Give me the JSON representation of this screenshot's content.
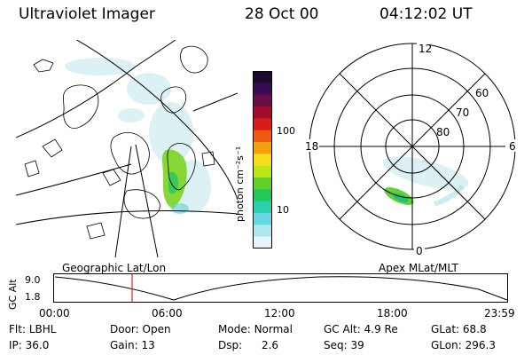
{
  "header": {
    "title": "Ultraviolet Imager",
    "date": "28 Oct 00",
    "time": "04:12:02 UT"
  },
  "colorbar": {
    "unit_label": "photon cm⁻²s⁻¹",
    "ticks": [
      "100",
      "10"
    ],
    "colors": [
      "#1c0a2c",
      "#3a0a52",
      "#6a0c46",
      "#a30d2b",
      "#d81b1b",
      "#f05a10",
      "#f6a010",
      "#f6dc1a",
      "#b8e81a",
      "#62d02a",
      "#22c85a",
      "#2ad0b0",
      "#66dae0",
      "#b0e8ef",
      "#e8f6f8"
    ]
  },
  "left_map": {
    "caption": "Geographic Lat/Lon",
    "aurora_color": "#7ed62a"
  },
  "polar_plot": {
    "caption": "Apex MLat/MLT",
    "hour_labels": [
      "12",
      "18",
      "6",
      "0"
    ],
    "lat_labels": [
      "60",
      "70",
      "80"
    ],
    "aurora_color": "#5fd23a"
  },
  "altitude_plot": {
    "ylabel": "GC Alt",
    "yticks": [
      "9.0",
      "1.8"
    ],
    "xticks": [
      "00:00",
      "06:00",
      "12:00",
      "18:00",
      "23:59"
    ],
    "marker_color": "#dd2222"
  },
  "info": {
    "flt_label": "Flt:",
    "flt_value": "LBHL",
    "ip_label": "IP:",
    "ip_value": "36.0",
    "door_label": "Door:",
    "door_value": "Open",
    "gain_label": "Gain:",
    "gain_value": "13",
    "mode_label": "Mode:",
    "mode_value": "Normal",
    "dsp_label": "Dsp:",
    "dsp_value": "2.6",
    "gcalt_label": "GC Alt:",
    "gcalt_value": "4.9 Re",
    "seq_label": "Seq:",
    "seq_value": "39",
    "glat_label": "GLat:",
    "glat_value": "68.8",
    "glon_label": "GLon:",
    "glon_value": "296.3"
  }
}
